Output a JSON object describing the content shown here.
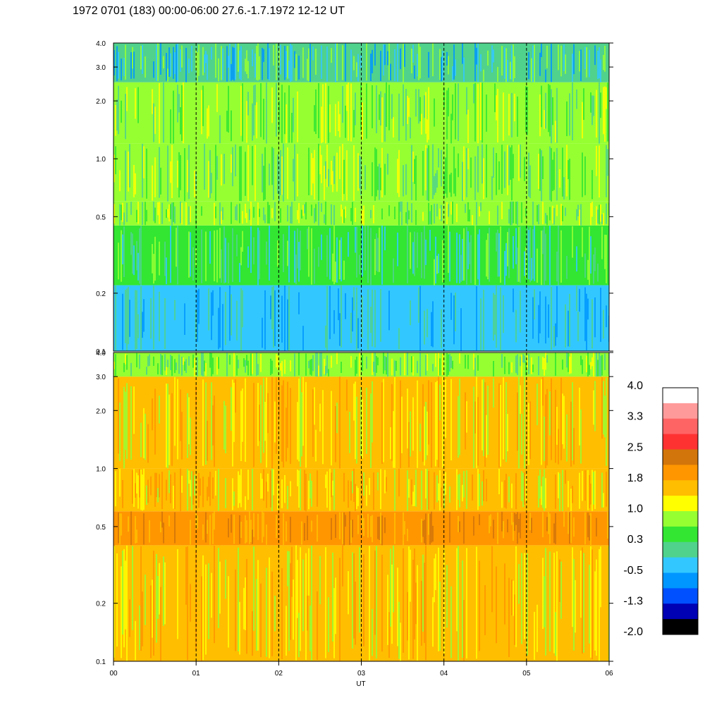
{
  "chart_data": {
    "type": "heatmap",
    "title": "1972 0701 (183) 00:00-06:00 27.6.-1.7.1972  12-12 UT",
    "xlabel": "UT",
    "x_ticks": [
      "00",
      "01",
      "02",
      "03",
      "04",
      "05",
      "06"
    ],
    "x_range": [
      0,
      6
    ],
    "y_scale": "log",
    "y_range": [
      0.1,
      4.0
    ],
    "y_ticks": [
      {
        "value": 0.1,
        "label": "0.1"
      },
      {
        "value": 0.2,
        "label": "0.2"
      },
      {
        "value": 0.5,
        "label": "0.5"
      },
      {
        "value": 1.0,
        "label": "1.0"
      },
      {
        "value": 2.0,
        "label": "2.0"
      },
      {
        "value": 3.0,
        "label": "3.0"
      },
      {
        "value": 4.0,
        "label": "4.0"
      }
    ],
    "colorbar": {
      "labels": [
        "4.0",
        "3.3",
        "2.5",
        "1.8",
        "1.0",
        "0.3",
        "-0.5",
        "-1.3",
        "-2.0"
      ],
      "colors": [
        "#ffffff",
        "#ff9a9a",
        "#ff6464",
        "#ff3232",
        "#d2750a",
        "#ff9600",
        "#ffbe00",
        "#ffff00",
        "#96ff32",
        "#32e632",
        "#50d28c",
        "#32c8ff",
        "#0096ff",
        "#0050ff",
        "#0000b4",
        "#000000"
      ]
    },
    "panels": [
      {
        "name": "upper",
        "bands": [
          {
            "y": [
              0.1,
              0.22
            ],
            "base_color": "#32c8ff"
          },
          {
            "y": [
              0.22,
              0.45
            ],
            "base_color": "#32e632"
          },
          {
            "y": [
              0.45,
              0.6
            ],
            "base_color": "#96ff32"
          },
          {
            "y": [
              0.6,
              1.2
            ],
            "base_color": "#96ff32"
          },
          {
            "y": [
              1.2,
              2.5
            ],
            "base_color": "#96ff32"
          },
          {
            "y": [
              2.5,
              4.0
            ],
            "base_color": "#50d28c"
          }
        ]
      },
      {
        "name": "lower",
        "bands": [
          {
            "y": [
              0.1,
              0.4
            ],
            "base_color": "#ffbe00"
          },
          {
            "y": [
              0.4,
              0.6
            ],
            "base_color": "#ff9600"
          },
          {
            "y": [
              0.6,
              1.0
            ],
            "base_color": "#ffbe00"
          },
          {
            "y": [
              1.0,
              3.0
            ],
            "base_color": "#ffbe00"
          },
          {
            "y": [
              3.0,
              4.0
            ],
            "base_color": "#96ff32"
          }
        ]
      }
    ]
  }
}
